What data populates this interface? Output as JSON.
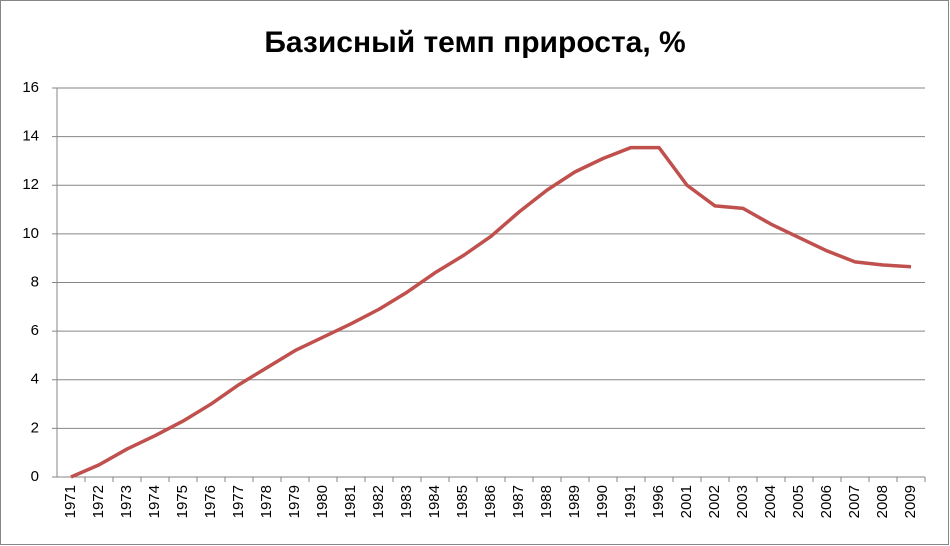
{
  "chart_data": {
    "type": "line",
    "title": "Базисный темп прироста, %",
    "categories": [
      "1971",
      "1972",
      "1973",
      "1974",
      "1975",
      "1976",
      "1977",
      "1978",
      "1979",
      "1980",
      "1981",
      "1982",
      "1983",
      "1984",
      "1985",
      "1986",
      "1987",
      "1988",
      "1989",
      "1990",
      "1991",
      "1996",
      "2001",
      "2002",
      "2003",
      "2004",
      "2005",
      "2006",
      "2007",
      "2008",
      "2009"
    ],
    "series": [
      {
        "name": "Базисный темп прироста, %",
        "color": "#c0504d",
        "values": [
          0,
          0.5,
          1.15,
          1.7,
          2.3,
          3.0,
          3.8,
          4.5,
          5.2,
          5.75,
          6.3,
          6.9,
          7.6,
          8.4,
          9.1,
          9.9,
          10.9,
          11.8,
          12.55,
          13.1,
          13.55,
          13.55,
          12.0,
          11.15,
          11.05,
          10.4,
          9.85,
          9.3,
          8.85,
          8.72,
          8.65
        ]
      }
    ],
    "ylim": [
      0,
      16
    ],
    "yticks": [
      0,
      2,
      4,
      6,
      8,
      10,
      12,
      14,
      16
    ],
    "grid": true
  }
}
